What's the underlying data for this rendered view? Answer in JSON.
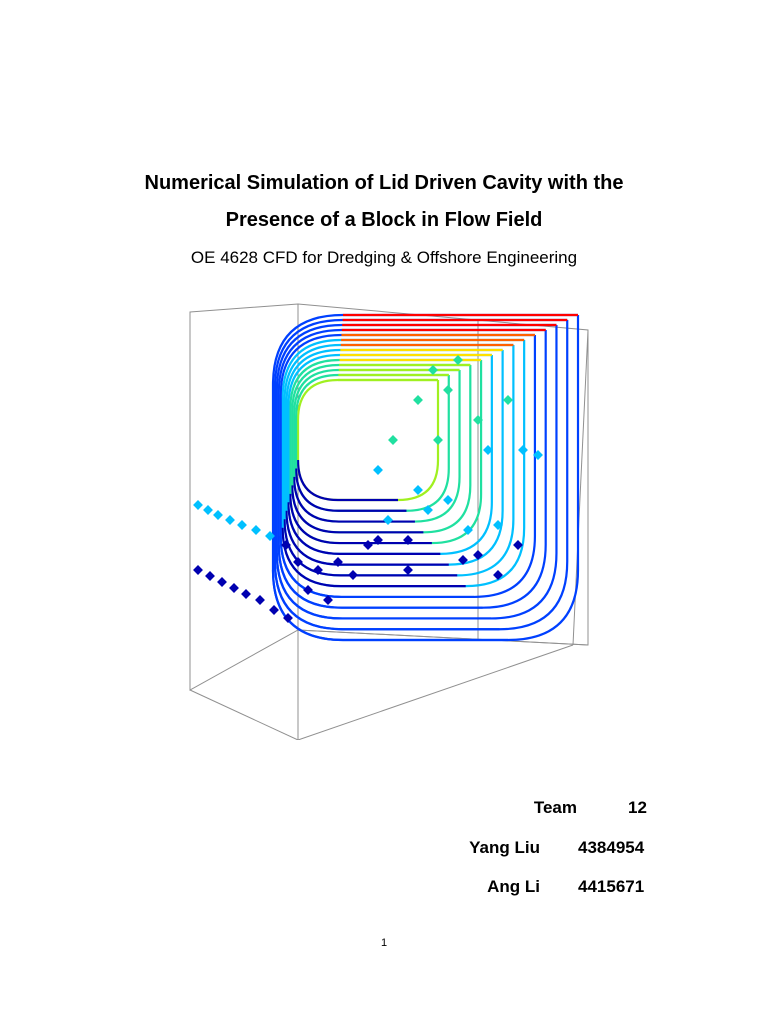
{
  "document": {
    "title_line1": "Numerical Simulation of Lid Driven Cavity with the",
    "title_line2": "Presence of a Block in Flow Field",
    "course": "OE 4628 CFD for Dredging & Offshore Engineering"
  },
  "authors": {
    "team_label": "Team",
    "team_number": "12",
    "members": [
      {
        "name": "Yang Liu",
        "id": "4384954"
      },
      {
        "name": "Ang Li",
        "id": "4415671"
      }
    ]
  },
  "page_number": "1",
  "figure": {
    "colormap": [
      "#0000b0",
      "#0040ff",
      "#00c0ff",
      "#20e0a0",
      "#a0f020",
      "#ffe000",
      "#ff6000",
      "#ff0000"
    ],
    "frame_color": "#909090"
  }
}
